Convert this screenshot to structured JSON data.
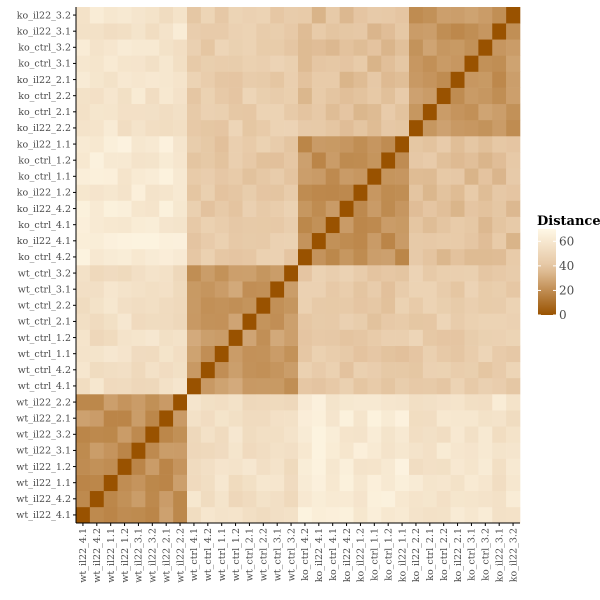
{
  "chart_data": {
    "type": "heatmap",
    "x_labels": [
      "wt_il22_4.1",
      "wt_il22_4.2",
      "wt_il22_1.1",
      "wt_il22_1.2",
      "wt_il22_3.1",
      "wt_il22_3.2",
      "wt_il22_2.1",
      "wt_il22_2.2",
      "wt_ctrl_4.1",
      "wt_ctrl_4.2",
      "wt_ctrl_1.1",
      "wt_ctrl_1.2",
      "wt_ctrl_2.1",
      "wt_ctrl_2.2",
      "wt_ctrl_3.1",
      "wt_ctrl_3.2",
      "ko_ctrl_4.2",
      "ko_il22_4.1",
      "ko_ctrl_4.1",
      "ko_il22_4.2",
      "ko_il22_1.2",
      "ko_ctrl_1.1",
      "ko_ctrl_1.2",
      "ko_il22_1.1",
      "ko_il22_2.2",
      "ko_ctrl_2.1",
      "ko_ctrl_2.2",
      "ko_il22_2.1",
      "ko_ctrl_3.1",
      "ko_ctrl_3.2",
      "ko_il22_3.1",
      "ko_il22_3.2"
    ],
    "y_labels": [
      "wt_il22_4.1",
      "wt_il22_4.2",
      "wt_il22_1.1",
      "wt_il22_1.2",
      "wt_il22_3.1",
      "wt_il22_3.2",
      "wt_il22_2.1",
      "wt_il22_2.2",
      "wt_ctrl_4.1",
      "wt_ctrl_4.2",
      "wt_ctrl_1.1",
      "wt_ctrl_1.2",
      "wt_ctrl_2.1",
      "wt_ctrl_2.2",
      "wt_ctrl_3.1",
      "wt_ctrl_3.2",
      "ko_ctrl_4.2",
      "ko_il22_4.1",
      "ko_ctrl_4.1",
      "ko_il22_4.2",
      "ko_il22_1.2",
      "ko_ctrl_1.1",
      "ko_ctrl_1.2",
      "ko_il22_1.1",
      "ko_il22_2.2",
      "ko_ctrl_2.1",
      "ko_ctrl_2.2",
      "ko_il22_2.1",
      "ko_ctrl_3.1",
      "ko_ctrl_3.2",
      "ko_il22_3.1",
      "ko_il22_3.2"
    ],
    "groups": [
      {
        "members": [
          0,
          1,
          2,
          3,
          4,
          5,
          6,
          7
        ],
        "within": 22
      },
      {
        "members": [
          8,
          9,
          10,
          11,
          12,
          13,
          14,
          15
        ],
        "within": 25
      },
      {
        "members": [
          16,
          17,
          18,
          19,
          20,
          21,
          22,
          23
        ],
        "within": 22
      },
      {
        "members": [
          24,
          25,
          26,
          27,
          28,
          29,
          30,
          31
        ],
        "within": 23
      }
    ],
    "group_distances": [
      [
        22,
        55,
        62,
        58
      ],
      [
        55,
        25,
        42,
        44
      ],
      [
        62,
        42,
        22,
        38
      ],
      [
        58,
        44,
        38,
        23
      ]
    ],
    "legend": {
      "title": "Distance",
      "ticks": [
        0,
        20,
        40,
        60
      ],
      "range": [
        0,
        70
      ],
      "low_color": "#995200",
      "high_color": "#FFF8E6",
      "mid_color": "#E4C4A0"
    },
    "xlabel": "",
    "ylabel": ""
  }
}
